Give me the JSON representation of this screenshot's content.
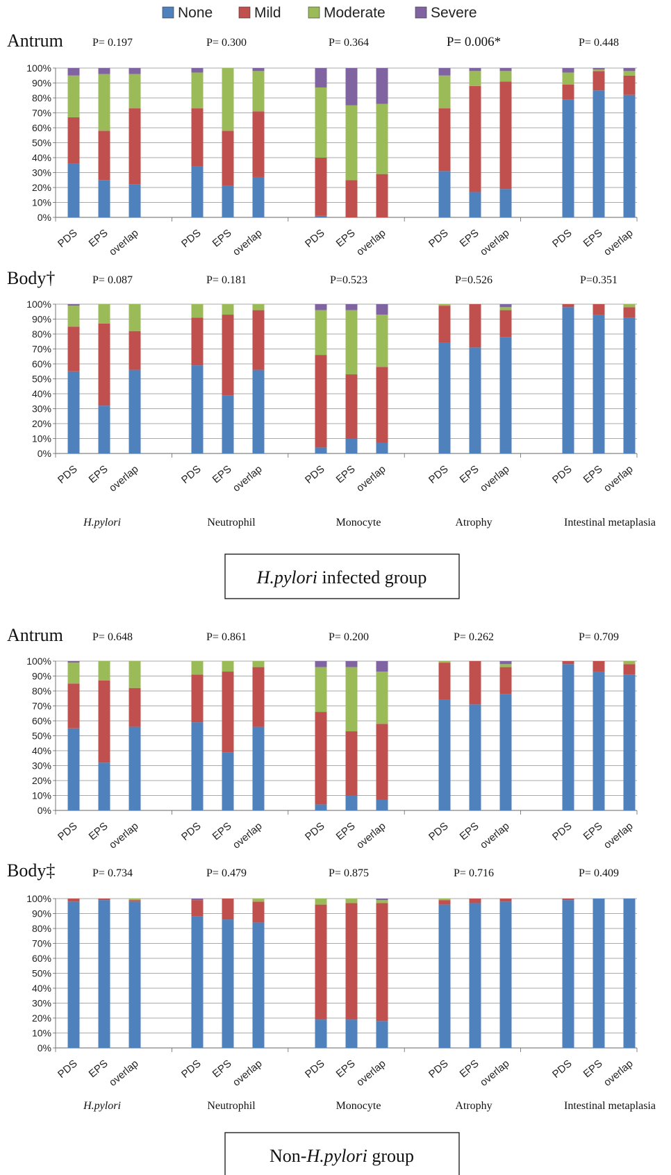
{
  "legend": [
    {
      "label": "None",
      "color": "#4F81BD"
    },
    {
      "label": "Mild",
      "color": "#C0504D"
    },
    {
      "label": "Moderate",
      "color": "#9BBB59"
    },
    {
      "label": "Severe",
      "color": "#8064A2"
    }
  ],
  "groups": [
    {
      "label_pre": "",
      "label_em": "H.pylori",
      "label_post": " infected group",
      "category_labels": [
        "H.pylori",
        "Neutrophil",
        "Monocyte",
        "Atrophy",
        "Intestinal metaplasia"
      ]
    },
    {
      "label_pre": "Non-",
      "label_em": "H.pylori",
      "label_post": " group",
      "category_labels": [
        "H.pylori",
        "Neutrophil",
        "Monocyte",
        "Atrophy",
        "Intestinal metaplasia"
      ]
    }
  ],
  "chart_data": [
    {
      "type": "bar",
      "stacked": true,
      "region": "Antrum",
      "bar_labels": [
        "PDS",
        "EPS",
        "overlap"
      ],
      "y_ticks": [
        "0%",
        "10%",
        "20%",
        "30%",
        "40%",
        "50%",
        "60%",
        "70%",
        "80%",
        "90%",
        "100%"
      ],
      "ylim": [
        0,
        100
      ],
      "p_values": [
        "P= 0.197",
        "P= 0.300",
        "P= 0.364",
        "P= 0.006*",
        "P= 0.448"
      ],
      "data": [
        [
          [
            36,
            31,
            28,
            5
          ],
          [
            25,
            33,
            38,
            4
          ],
          [
            22,
            51,
            23,
            4
          ]
        ],
        [
          [
            34,
            39,
            24,
            3
          ],
          [
            21,
            37,
            42,
            0
          ],
          [
            27,
            44,
            27,
            2
          ]
        ],
        [
          [
            1,
            39,
            47,
            13
          ],
          [
            0,
            25,
            50,
            25
          ],
          [
            0,
            29,
            47,
            24
          ]
        ],
        [
          [
            31,
            42,
            22,
            5
          ],
          [
            17,
            71,
            10,
            2
          ],
          [
            19,
            72,
            7,
            2
          ]
        ],
        [
          [
            79,
            10,
            8,
            3
          ],
          [
            85,
            13,
            1,
            1
          ],
          [
            82,
            13,
            3,
            2
          ]
        ]
      ]
    },
    {
      "type": "bar",
      "stacked": true,
      "region": "Body†",
      "bar_labels": [
        "PDS",
        "EPS",
        "overlap"
      ],
      "y_ticks": [
        "0%",
        "10%",
        "20%",
        "30%",
        "40%",
        "50%",
        "60%",
        "70%",
        "80%",
        "90%",
        "100%"
      ],
      "ylim": [
        0,
        100
      ],
      "p_values": [
        "P= 0.087",
        "P= 0.181",
        "P=0.523",
        "P=0.526",
        "P=0.351"
      ],
      "data": [
        [
          [
            55,
            30,
            14,
            1
          ],
          [
            32,
            55,
            13,
            0
          ],
          [
            56,
            26,
            18,
            0
          ]
        ],
        [
          [
            59,
            32,
            9,
            0
          ],
          [
            39,
            54,
            7,
            0
          ],
          [
            56,
            40,
            4,
            0
          ]
        ],
        [
          [
            4,
            62,
            30,
            4
          ],
          [
            10,
            43,
            43,
            4
          ],
          [
            7,
            51,
            35,
            7
          ]
        ],
        [
          [
            74,
            25,
            1,
            0
          ],
          [
            71,
            29,
            0,
            0
          ],
          [
            78,
            18,
            2,
            2
          ]
        ],
        [
          [
            98,
            2,
            0,
            0
          ],
          [
            93,
            7,
            0,
            0
          ],
          [
            91,
            7,
            2,
            0
          ]
        ]
      ]
    },
    {
      "type": "bar",
      "stacked": true,
      "region": "Antrum",
      "bar_labels": [
        "PDS",
        "EPS",
        "overlap"
      ],
      "y_ticks": [
        "0%",
        "10%",
        "20%",
        "30%",
        "40%",
        "50%",
        "60%",
        "70%",
        "80%",
        "90%",
        "100%"
      ],
      "ylim": [
        0,
        100
      ],
      "p_values": [
        "P= 0.648",
        "P= 0.861",
        "P= 0.200",
        "P= 0.262",
        "P= 0.709"
      ],
      "data": [
        [
          [
            55,
            30,
            14,
            1
          ],
          [
            32,
            55,
            13,
            0
          ],
          [
            56,
            26,
            18,
            0
          ]
        ],
        [
          [
            59,
            32,
            9,
            0
          ],
          [
            39,
            54,
            7,
            0
          ],
          [
            56,
            40,
            4,
            0
          ]
        ],
        [
          [
            4,
            62,
            30,
            4
          ],
          [
            10,
            43,
            43,
            4
          ],
          [
            7,
            51,
            35,
            7
          ]
        ],
        [
          [
            74,
            25,
            1,
            0
          ],
          [
            71,
            29,
            0,
            0
          ],
          [
            78,
            18,
            2,
            2
          ]
        ],
        [
          [
            98,
            2,
            0,
            0
          ],
          [
            93,
            7,
            0,
            0
          ],
          [
            91,
            7,
            2,
            0
          ]
        ]
      ]
    },
    {
      "type": "bar",
      "stacked": true,
      "region": "Body‡",
      "bar_labels": [
        "PDS",
        "EPS",
        "overlap"
      ],
      "y_ticks": [
        "0%",
        "10%",
        "20%",
        "30%",
        "40%",
        "50%",
        "60%",
        "70%",
        "80%",
        "90%",
        "100%"
      ],
      "ylim": [
        0,
        100
      ],
      "p_values": [
        "P= 0.734",
        "P= 0.479",
        "P= 0.875",
        "P= 0.716",
        "P= 0.409"
      ],
      "data": [
        [
          [
            98,
            2,
            0,
            0
          ],
          [
            99,
            1,
            0,
            0
          ],
          [
            98,
            1,
            1,
            0
          ]
        ],
        [
          [
            88,
            11,
            0,
            1
          ],
          [
            86,
            14,
            0,
            0
          ],
          [
            84,
            14,
            2,
            0
          ]
        ],
        [
          [
            19,
            77,
            4,
            0
          ],
          [
            19,
            78,
            3,
            0
          ],
          [
            18,
            79,
            2,
            1
          ]
        ],
        [
          [
            96,
            3,
            1,
            0
          ],
          [
            97,
            3,
            0,
            0
          ],
          [
            98,
            2,
            0,
            0
          ]
        ],
        [
          [
            99,
            1,
            0,
            0
          ],
          [
            100,
            0,
            0,
            0
          ],
          [
            100,
            0,
            0,
            0
          ]
        ]
      ]
    }
  ]
}
